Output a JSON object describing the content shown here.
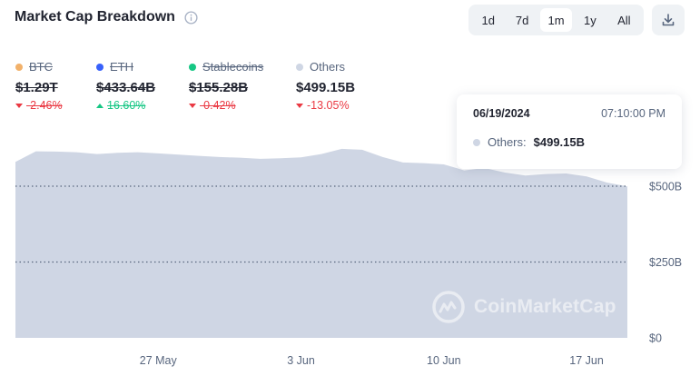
{
  "header": {
    "title": "Market Cap Breakdown",
    "info_icon": "info-circle-icon",
    "ranges": [
      "1d",
      "7d",
      "1m",
      "1y",
      "All"
    ],
    "active_range": "1m",
    "download_icon": "download-icon"
  },
  "legend": [
    {
      "name": "BTC",
      "value": "$1.29T",
      "change": "-2.46%",
      "direction": "down",
      "color": "#f2b16a",
      "hidden": true
    },
    {
      "name": "ETH",
      "value": "$433.64B",
      "change": "16.60%",
      "direction": "up",
      "color": "#3861fb",
      "hidden": true
    },
    {
      "name": "Stablecoins",
      "value": "$155.28B",
      "change": "-0.42%",
      "direction": "down",
      "color": "#16c784",
      "hidden": true
    },
    {
      "name": "Others",
      "value": "$499.15B",
      "change": "-13.05%",
      "direction": "down",
      "color": "#cfd6e4",
      "hidden": false
    }
  ],
  "tooltip": {
    "date": "06/19/2024",
    "time": "07:10:00 PM",
    "label": "Others:",
    "value": "$499.15B"
  },
  "watermark": "CoinMarketCap",
  "chart_data": {
    "type": "area",
    "series": [
      {
        "name": "Others",
        "color": "#cfd6e4",
        "points": [
          [
            "2024-05-20",
            580
          ],
          [
            "2024-05-21",
            615
          ],
          [
            "2024-05-22",
            614
          ],
          [
            "2024-05-23",
            612
          ],
          [
            "2024-05-24",
            606
          ],
          [
            "2024-05-25",
            610
          ],
          [
            "2024-05-26",
            612
          ],
          [
            "2024-05-27",
            608
          ],
          [
            "2024-05-28",
            604
          ],
          [
            "2024-05-29",
            600
          ],
          [
            "2024-05-30",
            596
          ],
          [
            "2024-05-31",
            594
          ],
          [
            "2024-06-01",
            590
          ],
          [
            "2024-06-02",
            592
          ],
          [
            "2024-06-03",
            595
          ],
          [
            "2024-06-04",
            606
          ],
          [
            "2024-06-05",
            623
          ],
          [
            "2024-06-06",
            620
          ],
          [
            "2024-06-07",
            596
          ],
          [
            "2024-06-08",
            578
          ],
          [
            "2024-06-09",
            576
          ],
          [
            "2024-06-10",
            572
          ],
          [
            "2024-06-11",
            552
          ],
          [
            "2024-06-12",
            560
          ],
          [
            "2024-06-13",
            545
          ],
          [
            "2024-06-14",
            535
          ],
          [
            "2024-06-15",
            540
          ],
          [
            "2024-06-16",
            542
          ],
          [
            "2024-06-17",
            532
          ],
          [
            "2024-06-18",
            512
          ],
          [
            "2024-06-19",
            499.15
          ]
        ]
      }
    ],
    "x_ticks": [
      "27 May",
      "3 Jun",
      "10 Jun",
      "17 Jun"
    ],
    "x_tick_dates": [
      "2024-05-27",
      "2024-06-03",
      "2024-06-10",
      "2024-06-17"
    ],
    "xlim": [
      "2024-05-20",
      "2024-06-19"
    ],
    "y_ticks": [
      "$0",
      "$250B",
      "$500B"
    ],
    "y_tick_values": [
      0,
      250,
      500
    ],
    "ylim": [
      0,
      500
    ],
    "y_axis_side": "right",
    "grid": "horizontal-dotted"
  }
}
